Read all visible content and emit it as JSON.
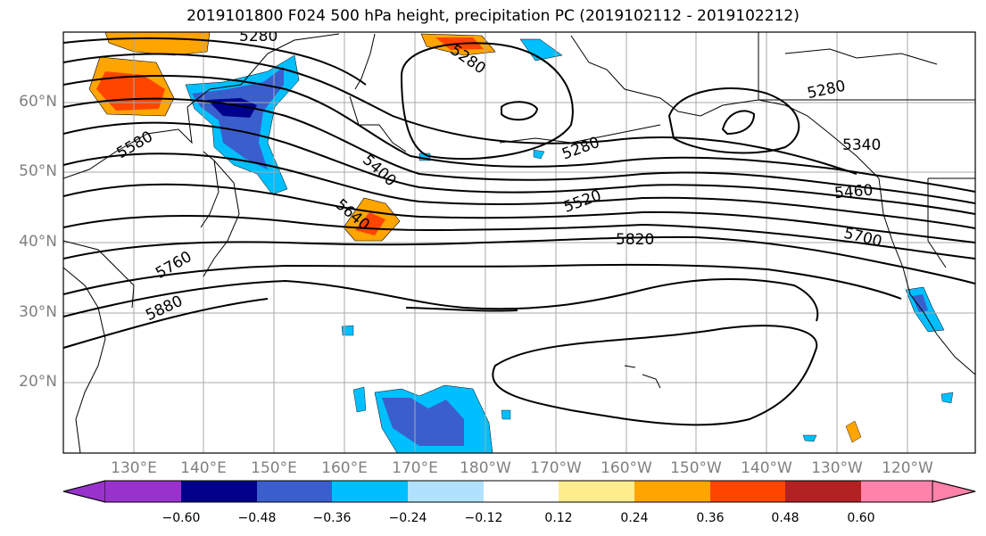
{
  "title": "2019101800 F024 500 hPa height, precipitation PC (2019102112 - 2019102212)",
  "lat_labels": [
    "60°N",
    "50°N",
    "40°N",
    "30°N",
    "20°N"
  ],
  "lon_labels": [
    "130°E",
    "140°E",
    "150°E",
    "160°E",
    "170°E",
    "180°W",
    "170°W",
    "160°W",
    "150°W",
    "140°W",
    "130°W",
    "120°W"
  ],
  "contour_labels": [
    "5280",
    "5280",
    "5280",
    "5280",
    "5340",
    "5400",
    "5460",
    "5520",
    "5580",
    "5640",
    "5700",
    "5760",
    "5820",
    "5880"
  ],
  "colorbar": {
    "ticks": [
      "−0.60",
      "−0.48",
      "−0.36",
      "−0.24",
      "−0.12",
      "0.12",
      "0.24",
      "0.36",
      "0.48",
      "0.60"
    ],
    "colors": [
      "#9932cc",
      "#00008b",
      "#3a5fcd",
      "#00bfff",
      "#b0e2ff",
      "#ffffff",
      "#ffec8b",
      "#ffa500",
      "#ff4500",
      "#b22222",
      "#ff82ab"
    ]
  }
}
